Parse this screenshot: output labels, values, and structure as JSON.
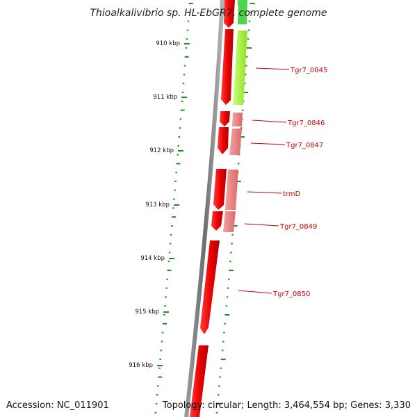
{
  "title": "Thioalkalivibrio sp. HL-EbGR7, complete genome",
  "footer": {
    "accession": "Accession: NC_011901",
    "topology": "Topology: circular; Length: 3,464,554 bp; Genes: 3,330"
  },
  "ticks": [
    {
      "label": "910 kbp"
    },
    {
      "label": "911 kbp"
    },
    {
      "label": "912 kbp"
    },
    {
      "label": "913 kbp"
    },
    {
      "label": "914 kbp"
    },
    {
      "label": "915 kbp"
    },
    {
      "label": "916 kbp"
    }
  ],
  "genes": [
    {
      "label": "Tgr7_0845"
    },
    {
      "label": "Tgr7_0846"
    },
    {
      "label": "Tgr7_0847"
    },
    {
      "label": "trmD"
    },
    {
      "label": "Tgr7_0849"
    },
    {
      "label": "Tgr7_0850"
    }
  ],
  "colors": {
    "cds_forward": "#ff0000",
    "gene_track": "#f08080",
    "rna_track": "#99ff33",
    "backbone": "#808080",
    "gc_dots": "#228b22",
    "label": "#cc0000"
  }
}
